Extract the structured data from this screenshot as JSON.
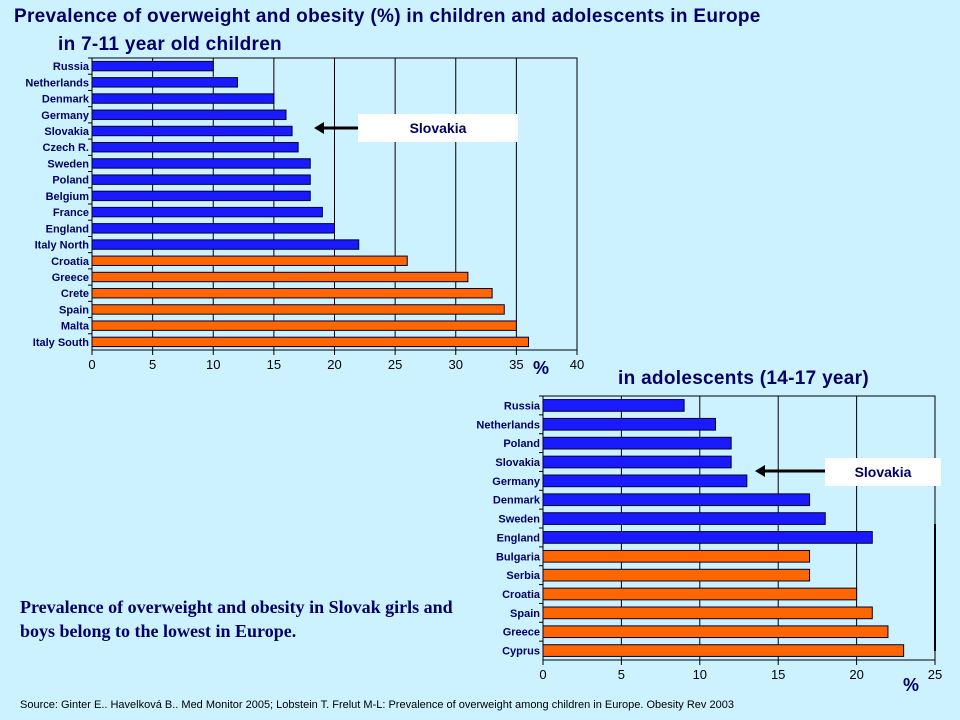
{
  "title_line1": "Prevalence of overweight and obesity (%) in children and adolescents in Europe",
  "title_line2": "in 7-11 year old children",
  "title_adolescents": "in adolescents (14-17 year)",
  "note": "Prevalence of overweight and obesity in Slovak girls and boys belong to the lowest in Europe.",
  "source": "Source: Ginter E.. Havelková B.. Med Monitor 2005; Lobstein T. Frelut M-L: Prevalence of overweight among children in Europe. Obesity Rev 2003",
  "callout_children": "Slovakia",
  "callout_adolescents": "Slovakia",
  "colors": {
    "north": "#1a1aff",
    "south": "#ff6600",
    "background": "#ccf2ff",
    "text": "#000066"
  },
  "chart_data": [
    {
      "type": "bar",
      "orientation": "horizontal",
      "title": "in 7-11 year old children",
      "xlabel": "%",
      "xlim": [
        0,
        40
      ],
      "xticks": [
        0,
        5,
        10,
        15,
        20,
        25,
        30,
        35,
        40
      ],
      "grid": true,
      "categories": [
        "Russia",
        "Netherlands",
        "Denmark",
        "Germany",
        "Slovakia",
        "Czech R.",
        "Sweden",
        "Poland",
        "Belgium",
        "France",
        "England",
        "Italy North",
        "Croatia",
        "Greece",
        "Crete",
        "Spain",
        "Malta",
        "Italy South"
      ],
      "values": [
        10,
        12,
        15,
        16,
        16.5,
        17,
        18,
        18,
        18,
        19,
        20,
        22,
        26,
        31,
        33,
        34,
        35,
        36
      ],
      "colors": [
        "#1a1aff",
        "#1a1aff",
        "#1a1aff",
        "#1a1aff",
        "#1a1aff",
        "#1a1aff",
        "#1a1aff",
        "#1a1aff",
        "#1a1aff",
        "#1a1aff",
        "#1a1aff",
        "#1a1aff",
        "#ff6600",
        "#ff6600",
        "#ff6600",
        "#ff6600",
        "#ff6600",
        "#ff6600"
      ]
    },
    {
      "type": "bar",
      "orientation": "horizontal",
      "title": "in adolescents (14-17 year)",
      "xlabel": "%",
      "xlim": [
        0,
        25
      ],
      "xticks": [
        0,
        5,
        10,
        15,
        20,
        25
      ],
      "grid": true,
      "categories": [
        "Russia",
        "Netherlands",
        "Poland",
        "Slovakia",
        "Germany",
        "Denmark",
        "Sweden",
        "England",
        "Bulgaria",
        "Serbia",
        "Croatia",
        "Spain",
        "Greece",
        "Cyprus"
      ],
      "values": [
        9,
        11,
        12,
        12,
        13,
        17,
        18,
        21,
        17,
        17,
        20,
        21,
        22,
        23
      ],
      "colors": [
        "#1a1aff",
        "#1a1aff",
        "#1a1aff",
        "#1a1aff",
        "#1a1aff",
        "#1a1aff",
        "#1a1aff",
        "#1a1aff",
        "#ff6600",
        "#ff6600",
        "#ff6600",
        "#ff6600",
        "#ff6600",
        "#ff6600"
      ]
    }
  ]
}
